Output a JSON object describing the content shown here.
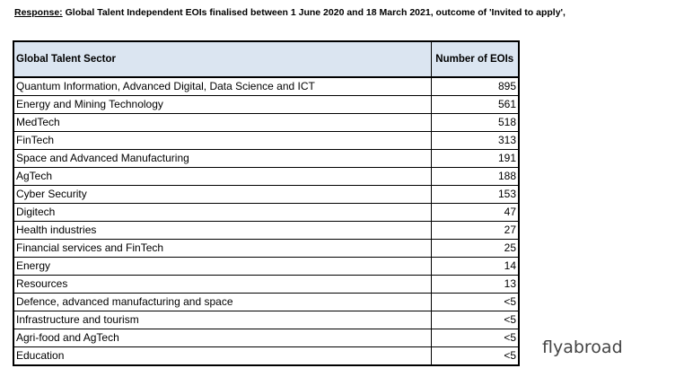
{
  "caption": {
    "lead": "Response:",
    "text": " Global Talent Independent EOIs finalised between 1 June 2020 and 18 March 2021, outcome of 'Invited to apply',"
  },
  "table": {
    "headers": [
      "Global Talent Sector",
      "Number of EOIs"
    ],
    "rows": [
      [
        "Quantum Information, Advanced Digital, Data Science and ICT",
        "895"
      ],
      [
        "Energy and Mining Technology",
        "561"
      ],
      [
        "MedTech",
        "518"
      ],
      [
        "FinTech",
        "313"
      ],
      [
        "Space and Advanced Manufacturing",
        "191"
      ],
      [
        "AgTech",
        "188"
      ],
      [
        "Cyber Security",
        "153"
      ],
      [
        "Digitech",
        "47"
      ],
      [
        "Health industries",
        "27"
      ],
      [
        "Financial services and FinTech",
        "25"
      ],
      [
        "Energy",
        "14"
      ],
      [
        "Resources",
        "13"
      ],
      [
        "Defence, advanced manufacturing and space",
        "<5"
      ],
      [
        "Infrastructure and tourism",
        "<5"
      ],
      [
        "Agri-food and AgTech",
        "<5"
      ],
      [
        "Education",
        "<5"
      ]
    ]
  },
  "watermark": "flyabroad"
}
